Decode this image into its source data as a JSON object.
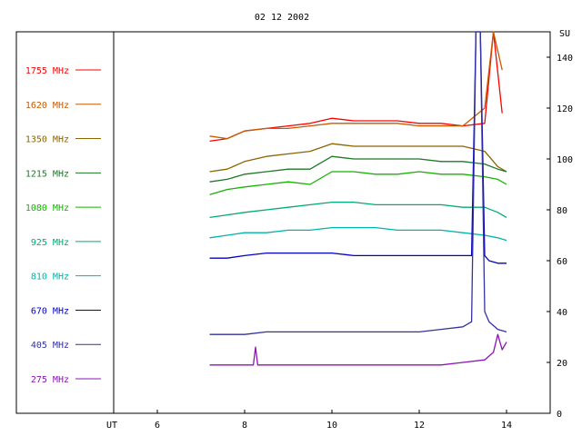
{
  "chart_data": {
    "type": "line",
    "title": "02 12 2002",
    "xlabel": "UT",
    "ylabel": "SU",
    "xlim": [
      5,
      15
    ],
    "ylim": [
      0,
      150
    ],
    "x_ticks": [
      6,
      8,
      10,
      12,
      14
    ],
    "y_ticks": [
      0,
      20,
      40,
      60,
      80,
      100,
      120,
      140
    ],
    "grid": false,
    "legend_position": "left",
    "series": [
      {
        "name": "1755 MHz",
        "color": "#ff0000",
        "x": [
          7.2,
          7.6,
          8.0,
          8.5,
          9.0,
          9.5,
          10.0,
          10.5,
          11.0,
          11.5,
          12.0,
          12.5,
          13.0,
          13.5,
          13.7,
          13.9
        ],
        "y": [
          107,
          108,
          111,
          112,
          113,
          114,
          116,
          115,
          115,
          115,
          114,
          114,
          113,
          114,
          150,
          118
        ]
      },
      {
        "name": "1620 MHz",
        "color": "#c85a00",
        "x": [
          7.2,
          7.6,
          8.0,
          8.5,
          9.0,
          9.5,
          10.0,
          10.5,
          11.0,
          11.5,
          12.0,
          12.5,
          13.0,
          13.5,
          13.7,
          13.9
        ],
        "y": [
          109,
          108,
          111,
          112,
          112,
          113,
          114,
          114,
          114,
          114,
          113,
          113,
          113,
          120,
          150,
          135
        ]
      },
      {
        "name": "1350 MHz",
        "color": "#8c6400",
        "x": [
          7.2,
          7.6,
          8.0,
          8.5,
          9.0,
          9.5,
          10.0,
          10.5,
          11.0,
          11.5,
          12.0,
          12.5,
          13.0,
          13.5,
          13.8,
          14.0
        ],
        "y": [
          95,
          96,
          99,
          101,
          102,
          103,
          106,
          105,
          105,
          105,
          105,
          105,
          105,
          103,
          97,
          95
        ]
      },
      {
        "name": "1215 MHz",
        "color": "#1e7828",
        "x": [
          7.2,
          7.6,
          8.0,
          8.5,
          9.0,
          9.5,
          10.0,
          10.5,
          11.0,
          11.5,
          12.0,
          12.5,
          13.0,
          13.5,
          13.8,
          14.0
        ],
        "y": [
          91,
          92,
          94,
          95,
          96,
          96,
          101,
          100,
          100,
          100,
          100,
          99,
          99,
          98,
          96,
          95
        ]
      },
      {
        "name": "1080 MHz",
        "color": "#14b400",
        "x": [
          7.2,
          7.6,
          8.0,
          8.5,
          9.0,
          9.5,
          10.0,
          10.5,
          11.0,
          11.5,
          12.0,
          12.5,
          13.0,
          13.5,
          13.8,
          14.0
        ],
        "y": [
          86,
          88,
          89,
          90,
          91,
          90,
          95,
          95,
          94,
          94,
          95,
          94,
          94,
          93,
          92,
          90
        ]
      },
      {
        "name": "925 MHz",
        "color": "#00aa78",
        "x": [
          7.2,
          7.6,
          8.0,
          8.5,
          9.0,
          9.5,
          10.0,
          10.5,
          11.0,
          11.5,
          12.0,
          12.5,
          13.0,
          13.5,
          13.8,
          14.0
        ],
        "y": [
          77,
          78,
          79,
          80,
          81,
          82,
          83,
          83,
          82,
          82,
          82,
          82,
          81,
          81,
          79,
          77
        ]
      },
      {
        "name": "810 MHz",
        "color": "#00b4aa",
        "x": [
          7.2,
          7.6,
          8.0,
          8.5,
          9.0,
          9.5,
          10.0,
          10.5,
          11.0,
          11.5,
          12.0,
          12.5,
          13.0,
          13.5,
          13.8,
          14.0
        ],
        "y": [
          69,
          70,
          71,
          71,
          72,
          72,
          73,
          73,
          73,
          72,
          72,
          72,
          71,
          70,
          69,
          68
        ]
      },
      {
        "name": "670 MHz",
        "color": "#0000c8",
        "x": [
          7.2,
          7.6,
          8.0,
          8.5,
          9.0,
          9.5,
          10.0,
          10.5,
          11.0,
          11.5,
          12.0,
          12.5,
          13.0,
          13.2,
          13.3,
          13.4,
          13.5,
          13.6,
          13.8,
          14.0
        ],
        "y": [
          61,
          61,
          62,
          63,
          63,
          63,
          63,
          62,
          62,
          62,
          62,
          62,
          62,
          62,
          150,
          150,
          62,
          60,
          59,
          59
        ]
      },
      {
        "name": "405 MHz",
        "color": "#3232a0",
        "x": [
          7.2,
          7.6,
          8.0,
          8.5,
          9.0,
          9.5,
          10.0,
          10.5,
          11.0,
          11.5,
          12.0,
          12.5,
          13.0,
          13.2,
          13.3,
          13.4,
          13.5,
          13.6,
          13.8,
          14.0
        ],
        "y": [
          31,
          31,
          31,
          32,
          32,
          32,
          32,
          32,
          32,
          32,
          32,
          33,
          34,
          36,
          150,
          150,
          40,
          36,
          33,
          32
        ]
      },
      {
        "name": "275 MHz",
        "color": "#8c14b4",
        "x": [
          7.2,
          7.6,
          8.0,
          8.2,
          8.25,
          8.3,
          8.5,
          9.0,
          9.5,
          10.0,
          10.5,
          11.0,
          11.5,
          12.0,
          12.5,
          13.0,
          13.5,
          13.7,
          13.8,
          13.9,
          14.0
        ],
        "y": [
          19,
          19,
          19,
          19,
          26,
          19,
          19,
          19,
          19,
          19,
          19,
          19,
          19,
          19,
          19,
          20,
          21,
          24,
          31,
          25,
          28
        ]
      }
    ]
  }
}
